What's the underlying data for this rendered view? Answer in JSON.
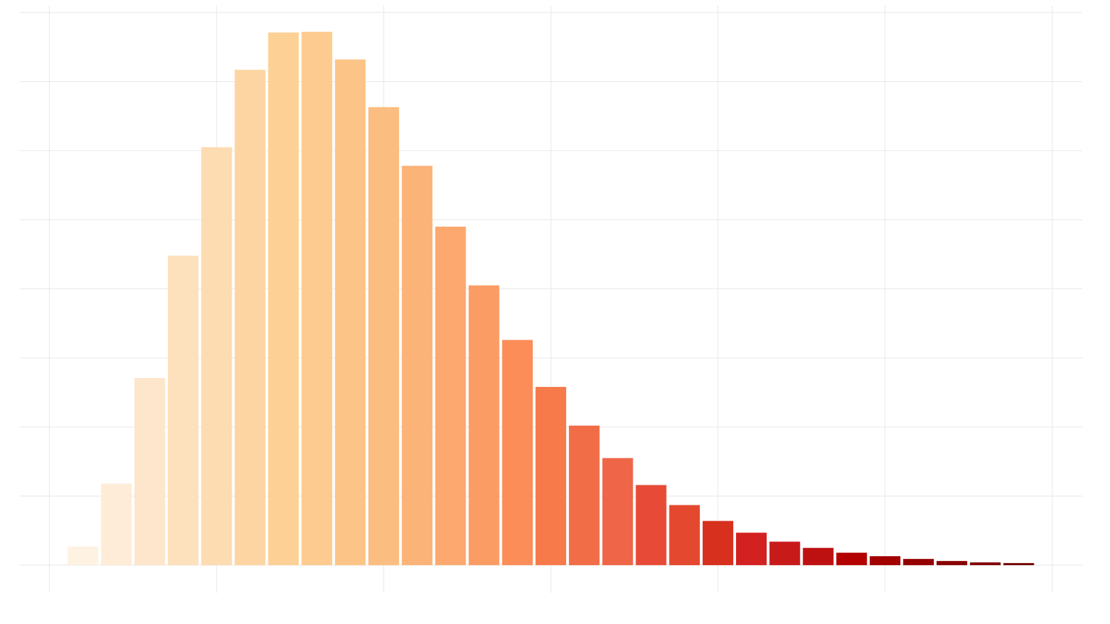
{
  "chart_data": {
    "type": "histogram",
    "bins": [
      0.1,
      0.3,
      0.5,
      0.7,
      0.9,
      1.1,
      1.3,
      1.5,
      1.7,
      1.9,
      2.1,
      2.3,
      2.5,
      2.7,
      2.9,
      3.1,
      3.3,
      3.5,
      3.7,
      3.9,
      4.1,
      4.3,
      4.5,
      4.7,
      4.9,
      5.1,
      5.3,
      5.5,
      5.7,
      5.9
    ],
    "values": [
      0.27,
      1.18,
      2.71,
      4.48,
      6.05,
      7.17,
      7.71,
      7.72,
      7.32,
      6.63,
      5.78,
      4.9,
      4.05,
      3.26,
      2.58,
      2.02,
      1.55,
      1.16,
      0.87,
      0.64,
      0.47,
      0.34,
      0.25,
      0.18,
      0.13,
      0.09,
      0.06,
      0.04,
      0.03
    ],
    "colors": [
      "#fef2e2",
      "#feecd8",
      "#fde6cb",
      "#fde0bc",
      "#fddcb2",
      "#fdd5a3",
      "#fdd195",
      "#fdcb8f",
      "#fcc587",
      "#fcbd80",
      "#fcb378",
      "#fca86f",
      "#fc9c65",
      "#fc8d59",
      "#f67a4a",
      "#f16d48",
      "#ef6548",
      "#e74b37",
      "#e4492f",
      "#d7301f",
      "#d32020",
      "#c91a1a",
      "#bd1010",
      "#b30000",
      "#a30000",
      "#940000",
      "#880000",
      "#7f0000",
      "#700000"
    ],
    "xlim": [
      -0.18,
      6.18
    ],
    "ylim": [
      -0.4,
      8.1
    ],
    "xticks": [
      0,
      1,
      2,
      3,
      4,
      5,
      6
    ],
    "yticks": [
      0,
      1,
      2,
      3,
      4,
      5,
      6,
      7,
      8
    ],
    "grid": true
  }
}
